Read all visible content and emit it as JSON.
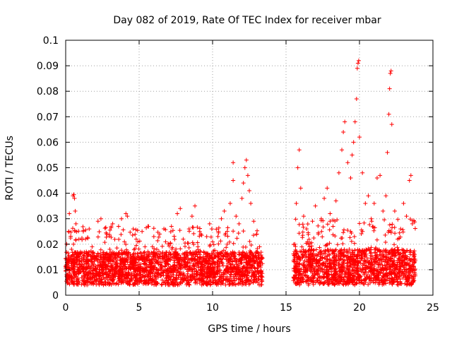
{
  "chart_data": {
    "type": "scatter",
    "title": "Day 082 of 2019, Rate Of TEC Index for receiver mbar",
    "xlabel": "GPS time / hours",
    "ylabel": "ROTI / TECUs",
    "xlim": [
      0,
      25
    ],
    "ylim": [
      0,
      0.1
    ],
    "x_ticks": [
      "0",
      "5",
      "10",
      "15",
      "20",
      "25"
    ],
    "y_ticks": [
      "0",
      "0.01",
      "0.02",
      "0.03",
      "0.04",
      "0.05",
      "0.06",
      "0.07",
      "0.08",
      "0.09",
      "0.1"
    ],
    "grid": true,
    "marker": "plus",
    "series_color": "#ff0000",
    "data_gap_hours": [
      13.4,
      15.5
    ],
    "series": [
      {
        "points": [
          [
            0.1,
            0.012
          ],
          [
            0.2,
            0.025
          ],
          [
            0.25,
            0.032
          ],
          [
            0.3,
            0.008
          ],
          [
            0.4,
            0.018
          ],
          [
            0.5,
            0.039
          ],
          [
            0.55,
            0.0395
          ],
          [
            0.6,
            0.038
          ],
          [
            0.65,
            0.033
          ],
          [
            0.7,
            0.028
          ],
          [
            0.8,
            0.014
          ],
          [
            0.9,
            0.022
          ],
          [
            1.0,
            0.017
          ],
          [
            1.2,
            0.025
          ],
          [
            1.4,
            0.011
          ],
          [
            1.6,
            0.026
          ],
          [
            1.8,
            0.019
          ],
          [
            2.0,
            0.015
          ],
          [
            2.2,
            0.029
          ],
          [
            2.4,
            0.03
          ],
          [
            2.6,
            0.013
          ],
          [
            2.8,
            0.024
          ],
          [
            3.0,
            0.018
          ],
          [
            3.2,
            0.028
          ],
          [
            3.4,
            0.012
          ],
          [
            3.6,
            0.027
          ],
          [
            3.8,
            0.03
          ],
          [
            4.0,
            0.021
          ],
          [
            4.1,
            0.032
          ],
          [
            4.2,
            0.031
          ],
          [
            4.4,
            0.016
          ],
          [
            4.6,
            0.026
          ],
          [
            4.8,
            0.022
          ],
          [
            5.0,
            0.014
          ],
          [
            5.2,
            0.025
          ],
          [
            5.4,
            0.019
          ],
          [
            5.6,
            0.027
          ],
          [
            5.8,
            0.013
          ],
          [
            6.0,
            0.023
          ],
          [
            6.2,
            0.018
          ],
          [
            6.4,
            0.024
          ],
          [
            6.6,
            0.015
          ],
          [
            6.8,
            0.021
          ],
          [
            7.0,
            0.012
          ],
          [
            7.2,
            0.027
          ],
          [
            7.4,
            0.017
          ],
          [
            7.6,
            0.032
          ],
          [
            7.8,
            0.034
          ],
          [
            8.0,
            0.022
          ],
          [
            8.2,
            0.016
          ],
          [
            8.4,
            0.026
          ],
          [
            8.6,
            0.031
          ],
          [
            8.8,
            0.035
          ],
          [
            9.0,
            0.019
          ],
          [
            9.2,
            0.024
          ],
          [
            9.4,
            0.017
          ],
          [
            9.6,
            0.023
          ],
          [
            9.8,
            0.028
          ],
          [
            10.0,
            0.021
          ],
          [
            10.2,
            0.015
          ],
          [
            10.4,
            0.025
          ],
          [
            10.6,
            0.03
          ],
          [
            10.8,
            0.033
          ],
          [
            11.0,
            0.02
          ],
          [
            11.2,
            0.036
          ],
          [
            11.4,
            0.045
          ],
          [
            11.4,
            0.052
          ],
          [
            11.6,
            0.031
          ],
          [
            11.8,
            0.028
          ],
          [
            12.0,
            0.038
          ],
          [
            12.1,
            0.044
          ],
          [
            12.2,
            0.05
          ],
          [
            12.3,
            0.053
          ],
          [
            12.4,
            0.047
          ],
          [
            12.5,
            0.041
          ],
          [
            12.6,
            0.036
          ],
          [
            12.8,
            0.029
          ],
          [
            13.0,
            0.024
          ],
          [
            13.2,
            0.019
          ],
          [
            13.3,
            0.015
          ],
          [
            15.6,
            0.02
          ],
          [
            15.7,
            0.036
          ],
          [
            15.8,
            0.05
          ],
          [
            15.9,
            0.057
          ],
          [
            16.0,
            0.042
          ],
          [
            16.2,
            0.031
          ],
          [
            16.4,
            0.026
          ],
          [
            16.6,
            0.019
          ],
          [
            16.8,
            0.029
          ],
          [
            17.0,
            0.035
          ],
          [
            17.2,
            0.024
          ],
          [
            17.4,
            0.03
          ],
          [
            17.6,
            0.038
          ],
          [
            17.8,
            0.042
          ],
          [
            18.0,
            0.032
          ],
          [
            18.2,
            0.027
          ],
          [
            18.4,
            0.037
          ],
          [
            18.6,
            0.048
          ],
          [
            18.8,
            0.057
          ],
          [
            18.9,
            0.064
          ],
          [
            19.0,
            0.068
          ],
          [
            19.2,
            0.052
          ],
          [
            19.4,
            0.046
          ],
          [
            19.5,
            0.055
          ],
          [
            19.6,
            0.06
          ],
          [
            19.7,
            0.068
          ],
          [
            19.8,
            0.077
          ],
          [
            19.85,
            0.089
          ],
          [
            19.9,
            0.091
          ],
          [
            19.95,
            0.092
          ],
          [
            20.0,
            0.062
          ],
          [
            20.2,
            0.048
          ],
          [
            20.4,
            0.036
          ],
          [
            20.6,
            0.039
          ],
          [
            20.8,
            0.03
          ],
          [
            21.0,
            0.036
          ],
          [
            21.2,
            0.046
          ],
          [
            21.4,
            0.047
          ],
          [
            21.6,
            0.033
          ],
          [
            21.8,
            0.039
          ],
          [
            21.9,
            0.056
          ],
          [
            22.0,
            0.071
          ],
          [
            22.05,
            0.081
          ],
          [
            22.1,
            0.087
          ],
          [
            22.15,
            0.088
          ],
          [
            22.2,
            0.067
          ],
          [
            22.4,
            0.033
          ],
          [
            22.6,
            0.022
          ],
          [
            22.8,
            0.026
          ],
          [
            23.0,
            0.036
          ],
          [
            23.2,
            0.031
          ],
          [
            23.4,
            0.045
          ],
          [
            23.5,
            0.047
          ],
          [
            23.6,
            0.028
          ],
          [
            23.7,
            0.015
          ]
        ]
      }
    ],
    "dense_band": {
      "segments": [
        {
          "x_range": [
            0.0,
            13.4
          ],
          "y_base_range": [
            0.004,
            0.017
          ],
          "y_spread_max": 0.027
        },
        {
          "x_range": [
            15.5,
            23.8
          ],
          "y_base_range": [
            0.004,
            0.018
          ],
          "y_spread_max": 0.03
        }
      ]
    }
  }
}
